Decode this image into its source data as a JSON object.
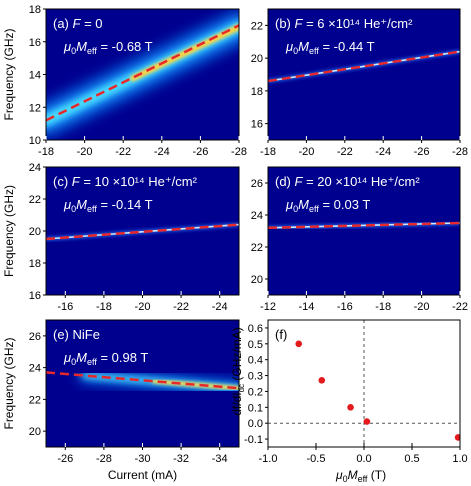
{
  "colors": {
    "background_blue": "#00008f",
    "frame": "#000000",
    "fit_dash": "#e8282a",
    "data_line": "#cfe8ff",
    "point": "#e41a1c",
    "guide": "#555555"
  },
  "chart_data": [
    {
      "type": "heatmap",
      "panel": "a",
      "annotation_line1": "(a) F = 0",
      "annotation_line2": "μ0Meff = -0.68 T",
      "xlim": [
        -18,
        -28
      ],
      "ylim": [
        10,
        18
      ],
      "xticks": [
        -18,
        -20,
        -22,
        -24,
        -26,
        -28
      ],
      "yticks": [
        10,
        12,
        14,
        16,
        18
      ],
      "ylabel": "Frequency (GHz)",
      "fit_line": {
        "x": [
          -18,
          -28
        ],
        "y": [
          11.2,
          17.0
        ]
      },
      "band": {
        "x": [
          -18,
          -28
        ],
        "y": [
          11.2,
          16.9
        ]
      }
    },
    {
      "type": "heatmap",
      "panel": "b",
      "annotation_line1": "(b) F = 6 ×10¹⁴ He⁺/cm²",
      "annotation_line2": "μ0Meff = -0.44 T",
      "xlim": [
        -18,
        -28
      ],
      "ylim": [
        15,
        23
      ],
      "xticks": [
        -18,
        -20,
        -22,
        -24,
        -26,
        -28
      ],
      "yticks": [
        16,
        18,
        20,
        22
      ],
      "fit_line": {
        "x": [
          -18,
          -28
        ],
        "y": [
          18.6,
          20.4
        ]
      }
    },
    {
      "type": "heatmap",
      "panel": "c",
      "annotation_line1": "(c) F = 10 ×10¹⁴ He⁺/cm²",
      "annotation_line2": "μ0Meff = -0.14 T",
      "xlim": [
        -15,
        -25
      ],
      "ylim": [
        16,
        24
      ],
      "xticks": [
        -16,
        -18,
        -20,
        -22,
        -24
      ],
      "yticks": [
        16,
        18,
        20,
        22,
        24
      ],
      "ylabel": "Frequency (GHz)",
      "fit_line": {
        "x": [
          -15,
          -25
        ],
        "y": [
          19.5,
          20.4
        ]
      }
    },
    {
      "type": "heatmap",
      "panel": "d",
      "annotation_line1": "(d) F = 20 ×10¹⁴ He⁺/cm²",
      "annotation_line2": "μ0Meff = 0.03 T",
      "xlim": [
        -12,
        -22
      ],
      "ylim": [
        19,
        27
      ],
      "xticks": [
        -12,
        -14,
        -16,
        -18,
        -20,
        -22
      ],
      "yticks": [
        20,
        22,
        24,
        26
      ],
      "fit_line": {
        "x": [
          -12,
          -22
        ],
        "y": [
          23.2,
          23.5
        ]
      }
    },
    {
      "type": "heatmap",
      "panel": "e",
      "annotation_line1": "(e) NiFe",
      "annotation_line2": "μ0Meff = 0.98 T",
      "xlim": [
        -25,
        -35
      ],
      "ylim": [
        19,
        27
      ],
      "xticks": [
        -26,
        -28,
        -30,
        -32,
        -34
      ],
      "yticks": [
        20,
        22,
        24,
        26
      ],
      "ylabel": "Frequency (GHz)",
      "xlabel": "Current (mA)",
      "fit_line": {
        "x": [
          -25,
          -35
        ],
        "y": [
          23.7,
          22.7
        ]
      },
      "band": {
        "x": [
          -27,
          -35
        ],
        "y": [
          23.5,
          22.7
        ]
      }
    },
    {
      "type": "scatter",
      "panel": "f",
      "annotation_line1": "(f)",
      "xlim": [
        -1.0,
        1.0
      ],
      "ylim": [
        -0.15,
        0.65
      ],
      "xticks": [
        -1.0,
        -0.5,
        0.0,
        0.5,
        1.0
      ],
      "yticks": [
        -0.1,
        0.0,
        0.1,
        0.2,
        0.3,
        0.4,
        0.5,
        0.6
      ],
      "xlabel": "μ0Meff (T)",
      "ylabel": "df/dIdc (GHz/mA)",
      "x": [
        -0.68,
        -0.44,
        -0.14,
        0.03,
        0.98
      ],
      "y": [
        0.5,
        0.27,
        0.1,
        0.01,
        -0.09
      ]
    }
  ]
}
